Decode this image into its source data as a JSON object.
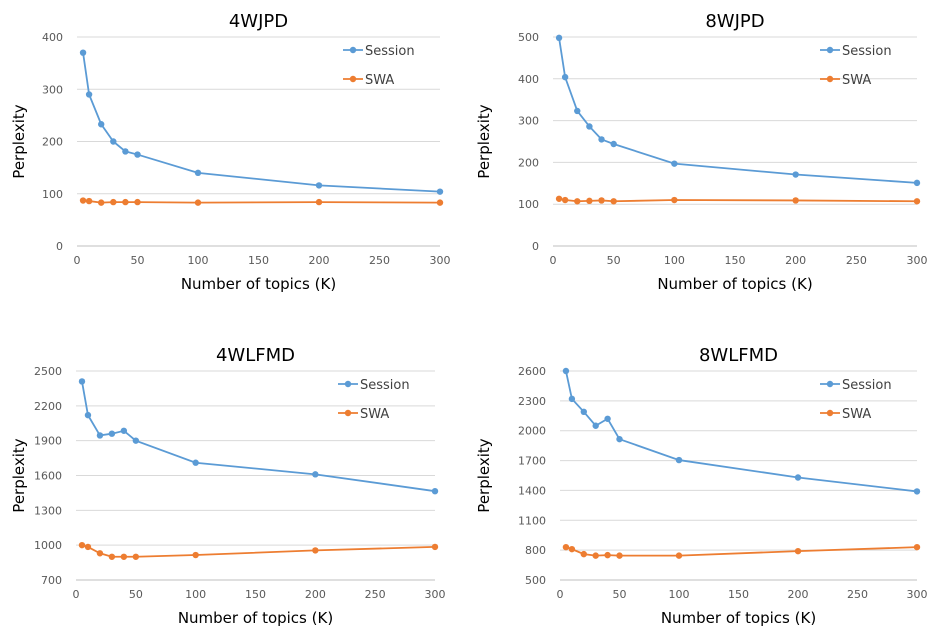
{
  "chart_data": [
    {
      "type": "line",
      "title": "4WJPD",
      "xlabel": "Number of topics (K)",
      "ylabel": "Perplexity",
      "xlim": [
        0,
        300
      ],
      "ylim": [
        0,
        400
      ],
      "x_ticks": [
        0,
        50,
        100,
        150,
        200,
        250,
        300
      ],
      "y_ticks": [
        0,
        100,
        200,
        300,
        400
      ],
      "grid": true,
      "legend": "top-right",
      "x": [
        5,
        10,
        20,
        30,
        40,
        50,
        100,
        200,
        300
      ],
      "series": [
        {
          "name": "Session",
          "color": "#5b9bd5",
          "values": [
            370,
            290,
            233,
            200,
            181,
            175,
            140,
            116,
            104
          ]
        },
        {
          "name": "SWA",
          "color": "#ed7d31",
          "values": [
            87,
            86,
            83,
            84,
            84,
            84,
            83,
            84,
            83
          ]
        }
      ]
    },
    {
      "type": "line",
      "title": "8WJPD",
      "xlabel": "Number of topics (K)",
      "ylabel": "Perplexity",
      "xlim": [
        0,
        300
      ],
      "ylim": [
        0,
        500
      ],
      "x_ticks": [
        0,
        50,
        100,
        150,
        200,
        250,
        300
      ],
      "y_ticks": [
        0,
        100,
        200,
        300,
        400,
        500
      ],
      "grid": true,
      "legend": "top-right",
      "x": [
        5,
        10,
        20,
        30,
        40,
        50,
        100,
        200,
        300
      ],
      "series": [
        {
          "name": "Session",
          "color": "#5b9bd5",
          "values": [
            498,
            404,
            323,
            286,
            255,
            244,
            197,
            171,
            151
          ]
        },
        {
          "name": "SWA",
          "color": "#ed7d31",
          "values": [
            113,
            110,
            107,
            108,
            109,
            107,
            110,
            109,
            107
          ]
        }
      ]
    },
    {
      "type": "line",
      "title": "4WLFMD",
      "xlabel": "Number of topics (K)",
      "ylabel": "Perplexity",
      "xlim": [
        0,
        300
      ],
      "ylim": [
        700,
        2500
      ],
      "x_ticks": [
        0,
        50,
        100,
        150,
        200,
        250,
        300
      ],
      "y_ticks": [
        700,
        1000,
        1300,
        1600,
        1900,
        2200,
        2500
      ],
      "grid": true,
      "legend": "top-right",
      "x": [
        5,
        10,
        20,
        30,
        40,
        50,
        100,
        200,
        300
      ],
      "series": [
        {
          "name": "Session",
          "color": "#5b9bd5",
          "values": [
            2410,
            2120,
            1945,
            1960,
            1985,
            1900,
            1710,
            1610,
            1465
          ]
        },
        {
          "name": "SWA",
          "color": "#ed7d31",
          "values": [
            1000,
            985,
            930,
            900,
            900,
            900,
            915,
            955,
            985
          ]
        }
      ]
    },
    {
      "type": "line",
      "title": "8WLFMD",
      "xlabel": "Number of topics (K)",
      "ylabel": "Perplexity",
      "xlim": [
        0,
        300
      ],
      "ylim": [
        500,
        2600
      ],
      "x_ticks": [
        0,
        50,
        100,
        150,
        200,
        250,
        300
      ],
      "y_ticks": [
        500,
        800,
        1100,
        1400,
        1700,
        2000,
        2300,
        2600
      ],
      "grid": true,
      "legend": "top-right",
      "x": [
        5,
        10,
        20,
        30,
        40,
        50,
        100,
        200,
        300
      ],
      "series": [
        {
          "name": "Session",
          "color": "#5b9bd5",
          "values": [
            2600,
            2320,
            2190,
            2050,
            2120,
            1915,
            1705,
            1530,
            1390
          ]
        },
        {
          "name": "SWA",
          "color": "#ed7d31",
          "values": [
            830,
            810,
            760,
            745,
            750,
            745,
            745,
            790,
            830
          ]
        }
      ]
    }
  ]
}
